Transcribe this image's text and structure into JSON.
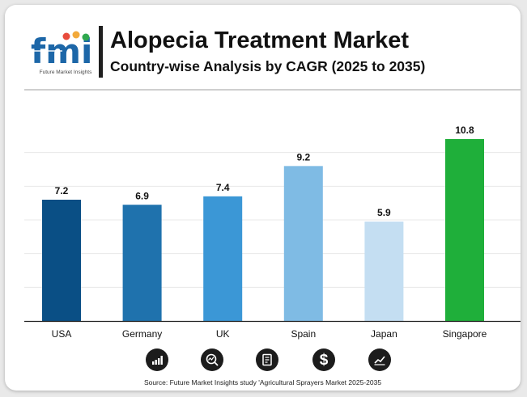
{
  "header": {
    "title": "Alopecia Treatment Market",
    "subtitle": "Country-wise Analysis by CAGR (2025 to 2035)"
  },
  "logo": {
    "text": "fmi",
    "tagline": "Future Market Insights"
  },
  "chart_data": {
    "type": "bar",
    "title": "Alopecia Treatment Market",
    "subtitle": "Country-wise Analysis by CAGR (2025 to 2035)",
    "categories": [
      "USA",
      "Germany",
      "UK",
      "Spain",
      "Japan",
      "Singapore"
    ],
    "values": [
      7.2,
      6.9,
      7.4,
      9.2,
      5.9,
      10.8
    ],
    "colors": [
      "#0a4f85",
      "#1f72ad",
      "#3b97d6",
      "#7fbbe4",
      "#c4def2",
      "#1faf3a"
    ],
    "ylim": [
      0,
      12
    ],
    "grid": true,
    "legend": "none",
    "show_data_labels": true
  },
  "footer_icons": [
    "bar-chart-icon",
    "search-chart-icon",
    "report-icon",
    "dollar-icon",
    "line-chart-icon"
  ],
  "source": "Source: Future Market Insights study 'Agricultural Sprayers Market 2025-2035"
}
